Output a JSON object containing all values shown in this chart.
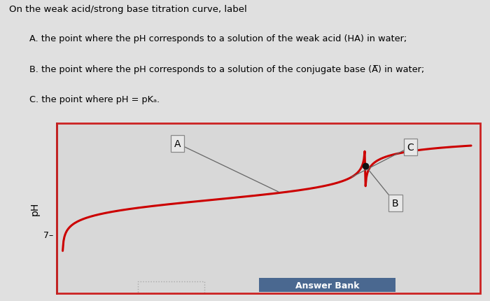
{
  "title_text": "On the weak acid/strong base titration curve, label",
  "line_A": "A. the point where the pH corresponds to a solution of the weak acid (HA) in water;",
  "line_B": "B. the point where the pH corresponds to a solution of the conjugate base (A̅) in water;",
  "line_C": "C. the point where pH = pKₐ.",
  "curve_color": "#cc0000",
  "fig_bg": "#e0e0e0",
  "plot_bg": "#d8d8d8",
  "border_color": "#cc2222",
  "ylabel": "pH",
  "answer_bank_text": "Answer Bank",
  "answer_bank_bg": "#4a6890",
  "answer_bank_text_color": "#ffffff",
  "label_A": "A",
  "label_B": "B",
  "label_C": "C",
  "box_facecolor": "#e8e8e8",
  "box_edgecolor": "#888888",
  "spine_color": "#222222",
  "dot_color": "#111111",
  "dotted_line_color": "#aaaaaa"
}
